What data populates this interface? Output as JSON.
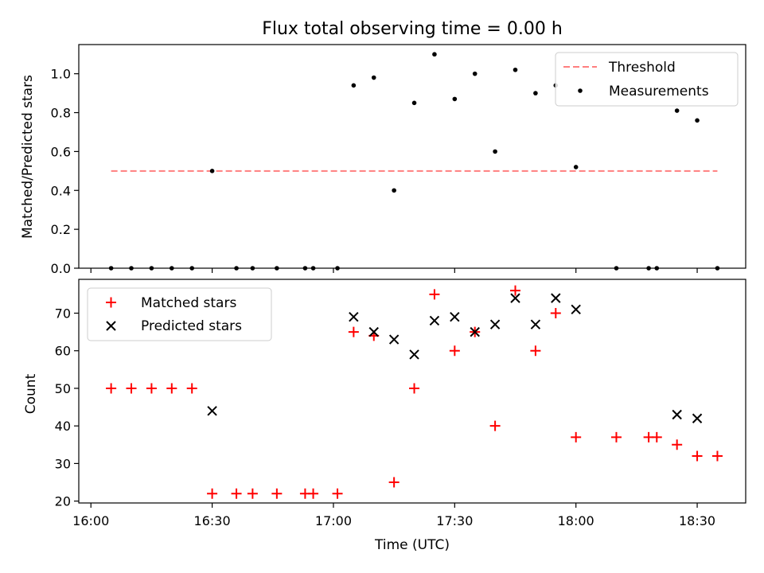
{
  "chart_data": [
    {
      "type": "scatter",
      "title": "Flux total observing time = 0.00 h",
      "xlabel": "",
      "ylabel": "Matched/Predicted stars",
      "ylim": [
        0,
        1.15
      ],
      "yticks": [
        "0.0",
        "0.2",
        "0.4",
        "0.6",
        "0.8",
        "1.0"
      ],
      "ytick_values": [
        0,
        0.2,
        0.4,
        0.6,
        0.8,
        1.0
      ],
      "legend_position": "top-right",
      "threshold": {
        "name": "Threshold",
        "value": 0.5,
        "x_range": [
          "16:05",
          "18:35"
        ],
        "color": "#ff7f7f"
      },
      "series": [
        {
          "name": "Measurements",
          "color": "#000000",
          "marker": "dot",
          "points": [
            {
              "x": "16:05",
              "y": 0.0
            },
            {
              "x": "16:10",
              "y": 0.0
            },
            {
              "x": "16:15",
              "y": 0.0
            },
            {
              "x": "16:20",
              "y": 0.0
            },
            {
              "x": "16:25",
              "y": 0.0
            },
            {
              "x": "16:30",
              "y": 0.5
            },
            {
              "x": "16:36",
              "y": 0.0
            },
            {
              "x": "16:40",
              "y": 0.0
            },
            {
              "x": "16:46",
              "y": 0.0
            },
            {
              "x": "16:53",
              "y": 0.0
            },
            {
              "x": "16:55",
              "y": 0.0
            },
            {
              "x": "17:01",
              "y": 0.0
            },
            {
              "x": "17:05",
              "y": 0.94
            },
            {
              "x": "17:10",
              "y": 0.98
            },
            {
              "x": "17:15",
              "y": 0.4
            },
            {
              "x": "17:20",
              "y": 0.85
            },
            {
              "x": "17:25",
              "y": 1.1
            },
            {
              "x": "17:30",
              "y": 0.87
            },
            {
              "x": "17:35",
              "y": 1.0
            },
            {
              "x": "17:40",
              "y": 0.6
            },
            {
              "x": "17:45",
              "y": 1.02
            },
            {
              "x": "17:50",
              "y": 0.9
            },
            {
              "x": "17:55",
              "y": 0.94
            },
            {
              "x": "18:00",
              "y": 0.52
            },
            {
              "x": "18:10",
              "y": 0.0
            },
            {
              "x": "18:18",
              "y": 0.0
            },
            {
              "x": "18:20",
              "y": 0.0
            },
            {
              "x": "18:25",
              "y": 0.81
            },
            {
              "x": "18:30",
              "y": 0.76
            },
            {
              "x": "18:35",
              "y": 0.0
            }
          ]
        }
      ]
    },
    {
      "type": "scatter",
      "title": "",
      "xlabel": "Time (UTC)",
      "ylabel": "Count",
      "xlim": [
        "15:57",
        "18:42"
      ],
      "xticks": [
        "16:00",
        "16:30",
        "17:00",
        "17:30",
        "18:00",
        "18:30"
      ],
      "ylim": [
        19.5,
        79
      ],
      "yticks": [
        "20",
        "30",
        "40",
        "50",
        "60",
        "70"
      ],
      "ytick_values": [
        20,
        30,
        40,
        50,
        60,
        70
      ],
      "legend_position": "top-left",
      "series": [
        {
          "name": "Matched stars",
          "color": "#ff0000",
          "marker": "plus",
          "points": [
            {
              "x": "16:05",
              "y": 50
            },
            {
              "x": "16:10",
              "y": 50
            },
            {
              "x": "16:15",
              "y": 50
            },
            {
              "x": "16:20",
              "y": 50
            },
            {
              "x": "16:25",
              "y": 50
            },
            {
              "x": "16:30",
              "y": 22
            },
            {
              "x": "16:36",
              "y": 22
            },
            {
              "x": "16:40",
              "y": 22
            },
            {
              "x": "16:46",
              "y": 22
            },
            {
              "x": "16:53",
              "y": 22
            },
            {
              "x": "16:55",
              "y": 22
            },
            {
              "x": "17:01",
              "y": 22
            },
            {
              "x": "17:05",
              "y": 65
            },
            {
              "x": "17:10",
              "y": 64
            },
            {
              "x": "17:15",
              "y": 25
            },
            {
              "x": "17:20",
              "y": 50
            },
            {
              "x": "17:25",
              "y": 75
            },
            {
              "x": "17:30",
              "y": 60
            },
            {
              "x": "17:35",
              "y": 65
            },
            {
              "x": "17:40",
              "y": 40
            },
            {
              "x": "17:45",
              "y": 76
            },
            {
              "x": "17:50",
              "y": 60
            },
            {
              "x": "17:55",
              "y": 70
            },
            {
              "x": "18:00",
              "y": 37
            },
            {
              "x": "18:10",
              "y": 37
            },
            {
              "x": "18:18",
              "y": 37
            },
            {
              "x": "18:20",
              "y": 37
            },
            {
              "x": "18:25",
              "y": 35
            },
            {
              "x": "18:30",
              "y": 32
            },
            {
              "x": "18:35",
              "y": 32
            }
          ]
        },
        {
          "name": "Predicted stars",
          "color": "#000000",
          "marker": "x",
          "points": [
            {
              "x": "16:30",
              "y": 44
            },
            {
              "x": "17:05",
              "y": 69
            },
            {
              "x": "17:10",
              "y": 65
            },
            {
              "x": "17:15",
              "y": 63
            },
            {
              "x": "17:20",
              "y": 59
            },
            {
              "x": "17:25",
              "y": 68
            },
            {
              "x": "17:30",
              "y": 69
            },
            {
              "x": "17:35",
              "y": 65
            },
            {
              "x": "17:40",
              "y": 67
            },
            {
              "x": "17:45",
              "y": 74
            },
            {
              "x": "17:50",
              "y": 67
            },
            {
              "x": "17:55",
              "y": 74
            },
            {
              "x": "18:00",
              "y": 71
            },
            {
              "x": "18:25",
              "y": 43
            },
            {
              "x": "18:30",
              "y": 42
            }
          ]
        }
      ]
    }
  ]
}
